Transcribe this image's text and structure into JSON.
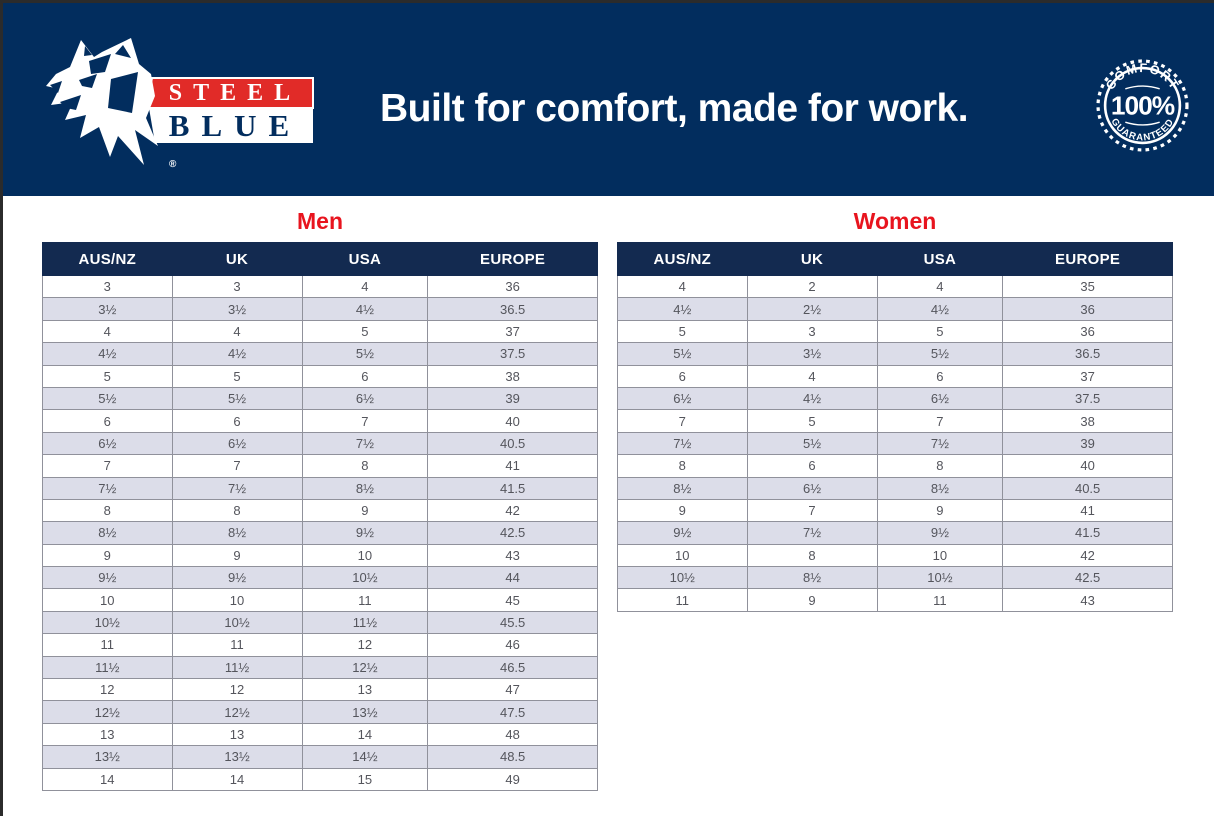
{
  "header": {
    "tagline": "Built for comfort, made for work.",
    "logo": {
      "brand_top": "STEEL",
      "brand_bottom": "BLUE",
      "registered_mark": "®"
    },
    "badge": {
      "top_text": "COMFORT",
      "center_text": "100%",
      "bottom_text": "GUARANTEED"
    }
  },
  "tables": {
    "men": {
      "title": "Men",
      "headers": [
        "AUS/NZ",
        "UK",
        "USA",
        "EUROPE"
      ],
      "rows": [
        [
          "3",
          "3",
          "4",
          "36"
        ],
        [
          "3½",
          "3½",
          "4½",
          "36.5"
        ],
        [
          "4",
          "4",
          "5",
          "37"
        ],
        [
          "4½",
          "4½",
          "5½",
          "37.5"
        ],
        [
          "5",
          "5",
          "6",
          "38"
        ],
        [
          "5½",
          "5½",
          "6½",
          "39"
        ],
        [
          "6",
          "6",
          "7",
          "40"
        ],
        [
          "6½",
          "6½",
          "7½",
          "40.5"
        ],
        [
          "7",
          "7",
          "8",
          "41"
        ],
        [
          "7½",
          "7½",
          "8½",
          "41.5"
        ],
        [
          "8",
          "8",
          "9",
          "42"
        ],
        [
          "8½",
          "8½",
          "9½",
          "42.5"
        ],
        [
          "9",
          "9",
          "10",
          "43"
        ],
        [
          "9½",
          "9½",
          "10½",
          "44"
        ],
        [
          "10",
          "10",
          "11",
          "45"
        ],
        [
          "10½",
          "10½",
          "11½",
          "45.5"
        ],
        [
          "11",
          "11",
          "12",
          "46"
        ],
        [
          "11½",
          "11½",
          "12½",
          "46.5"
        ],
        [
          "12",
          "12",
          "13",
          "47"
        ],
        [
          "12½",
          "12½",
          "13½",
          "47.5"
        ],
        [
          "13",
          "13",
          "14",
          "48"
        ],
        [
          "13½",
          "13½",
          "14½",
          "48.5"
        ],
        [
          "14",
          "14",
          "15",
          "49"
        ]
      ]
    },
    "women": {
      "title": "Women",
      "headers": [
        "AUS/NZ",
        "UK",
        "USA",
        "EUROPE"
      ],
      "rows": [
        [
          "4",
          "2",
          "4",
          "35"
        ],
        [
          "4½",
          "2½",
          "4½",
          "36"
        ],
        [
          "5",
          "3",
          "5",
          "36"
        ],
        [
          "5½",
          "3½",
          "5½",
          "36.5"
        ],
        [
          "6",
          "4",
          "6",
          "37"
        ],
        [
          "6½",
          "4½",
          "6½",
          "37.5"
        ],
        [
          "7",
          "5",
          "7",
          "38"
        ],
        [
          "7½",
          "5½",
          "7½",
          "39"
        ],
        [
          "8",
          "6",
          "8",
          "40"
        ],
        [
          "8½",
          "6½",
          "8½",
          "40.5"
        ],
        [
          "9",
          "7",
          "9",
          "41"
        ],
        [
          "9½",
          "7½",
          "9½",
          "41.5"
        ],
        [
          "10",
          "8",
          "10",
          "42"
        ],
        [
          "10½",
          "8½",
          "10½",
          "42.5"
        ],
        [
          "11",
          "9",
          "11",
          "43"
        ]
      ]
    }
  },
  "colors": {
    "band_navy": "#022d5e",
    "table_header_navy": "#132a50",
    "title_red": "#e8141e",
    "logo_red": "#e12b28",
    "row_alt": "#dcdde9",
    "row_border": "#90919b",
    "cell_text": "#54555c",
    "edge_strip": "#2b2b2b"
  }
}
